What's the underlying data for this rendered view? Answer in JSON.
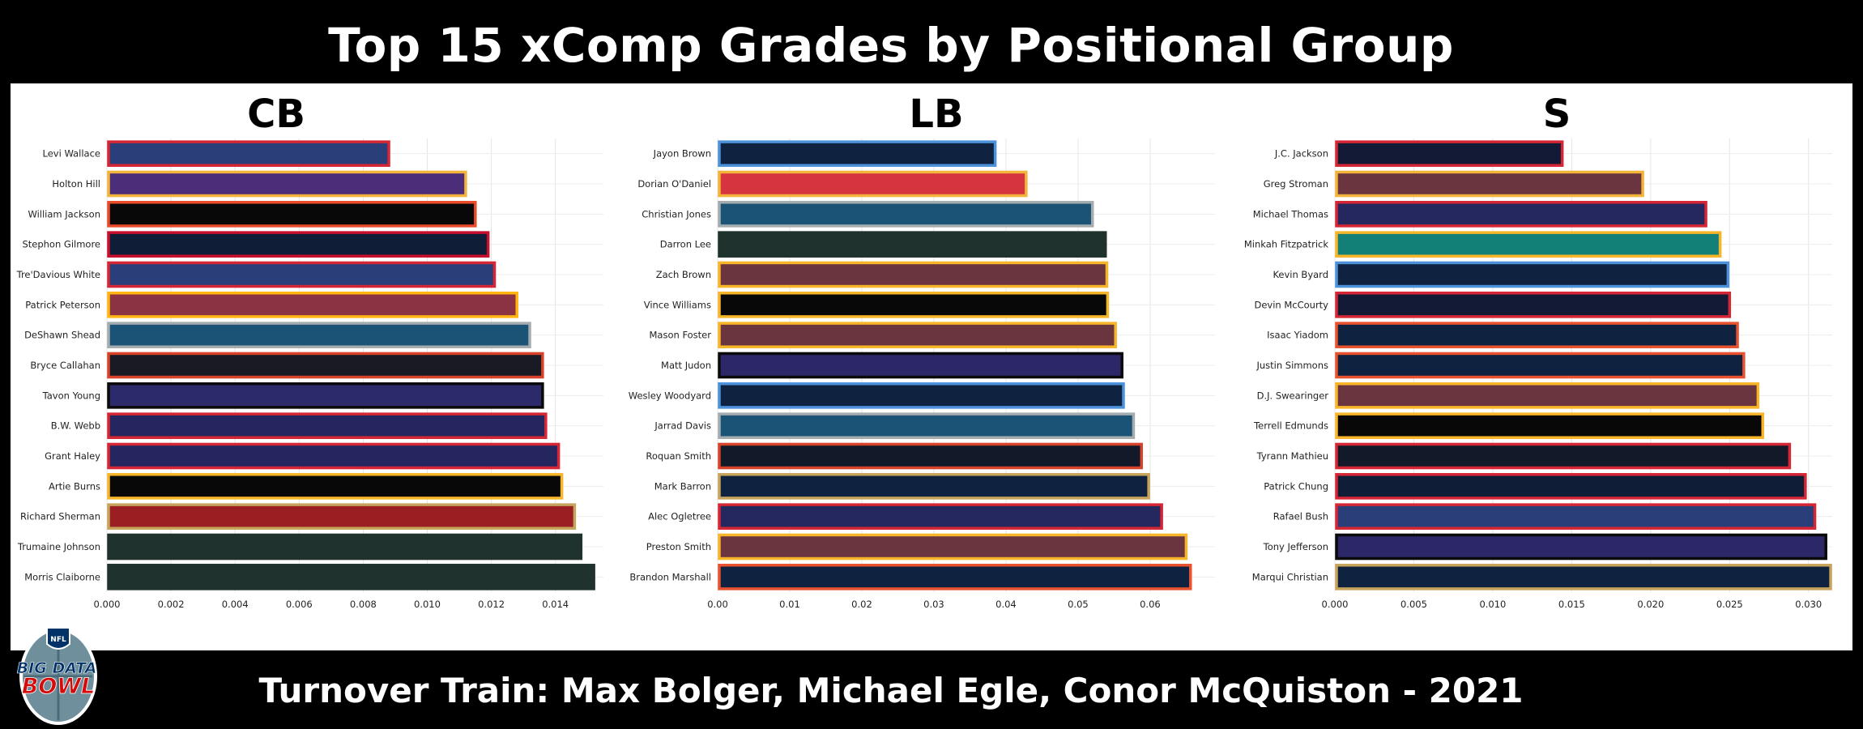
{
  "title": "Top 15 xComp Grades by Positional Group",
  "footer": "Turnover Train: Max Bolger, Michael Egle, Conor McQuiston - 2021",
  "logo": {
    "icon": "nfl-big-data-bowl-logo",
    "text_line1": "BIG DATA",
    "text_line2": "BOWL",
    "shield_text": "NFL"
  },
  "chart_data": [
    {
      "type": "bar",
      "orientation": "horizontal",
      "title": "CB",
      "xlim": [
        0,
        0.0155
      ],
      "xticks": [
        "0.000",
        "0.002",
        "0.004",
        "0.006",
        "0.008",
        "0.010",
        "0.012",
        "0.014"
      ],
      "xtick_values": [
        0,
        0.002,
        0.004,
        0.006,
        0.008,
        0.01,
        0.012,
        0.014
      ],
      "grid": true,
      "categories": [
        "Levi Wallace",
        "Holton Hill",
        "William Jackson",
        "Stephon Gilmore",
        "Tre'Davious White",
        "Patrick Peterson",
        "DeShawn Shead",
        "Bryce Callahan",
        "Tavon Young",
        "B.W. Webb",
        "Grant Haley",
        "Artie Burns",
        "Richard Sherman",
        "Trumaine Johnson",
        "Morris Claiborne"
      ],
      "values": [
        0.0088,
        0.0112,
        0.0115,
        0.0119,
        0.0121,
        0.0128,
        0.0132,
        0.0136,
        0.0136,
        0.0137,
        0.0141,
        0.0142,
        0.0146,
        0.0148,
        0.0152
      ],
      "fill_colors": [
        "#2a3f7a",
        "#4b2d7a",
        "#080808",
        "#0f1e36",
        "#2a3f7a",
        "#8b3243",
        "#1b5377",
        "#1a1a24",
        "#2d2a6b",
        "#252660",
        "#252660",
        "#080808",
        "#9a1e22",
        "#20322d",
        "#20322d"
      ],
      "edge_colors": [
        "#d52635",
        "#f2b53a",
        "#e94b2a",
        "#c8102e",
        "#d52635",
        "#ffb612",
        "#a5acaf",
        "#d8422b",
        "#0a0a0a",
        "#d52635",
        "#d52635",
        "#f7b529",
        "#c7a45b",
        "#20322d",
        "#20322d"
      ]
    },
    {
      "type": "bar",
      "orientation": "horizontal",
      "title": "LB",
      "xlim": [
        0,
        0.069
      ],
      "xticks": [
        "0.00",
        "0.01",
        "0.02",
        "0.03",
        "0.04",
        "0.05",
        "0.06"
      ],
      "xtick_values": [
        0,
        0.01,
        0.02,
        0.03,
        0.04,
        0.05,
        0.06
      ],
      "grid": true,
      "categories": [
        "Jayon Brown",
        "Dorian O'Daniel",
        "Christian Jones",
        "Darron Lee",
        "Zach Brown",
        "Vince Williams",
        "Mason Foster",
        "Matt Judon",
        "Wesley Woodyard",
        "Jarrad Davis",
        "Roquan Smith",
        "Mark Barron",
        "Alec Ogletree",
        "Preston Smith",
        "Brandon Marshall"
      ],
      "values": [
        0.0385,
        0.0428,
        0.052,
        0.0538,
        0.054,
        0.0541,
        0.0552,
        0.0561,
        0.0563,
        0.0577,
        0.0588,
        0.0598,
        0.0616,
        0.065,
        0.0656
      ],
      "fill_colors": [
        "#0f2340",
        "#d6353f",
        "#1b5377",
        "#20322d",
        "#6b3540",
        "#080808",
        "#6b3540",
        "#2c2766",
        "#0f2340",
        "#1b5377",
        "#121a2a",
        "#0f2340",
        "#25285e",
        "#6b3540",
        "#0f2340"
      ],
      "edge_colors": [
        "#4b92db",
        "#f2b53a",
        "#a5acaf",
        "#20322d",
        "#f7b529",
        "#f7b529",
        "#f7b529",
        "#0a0a0a",
        "#4b92db",
        "#a5acaf",
        "#d8422b",
        "#c7a45b",
        "#d52635",
        "#f7b529",
        "#e9522e"
      ]
    },
    {
      "type": "bar",
      "orientation": "horizontal",
      "title": "S",
      "xlim": [
        0,
        0.0315
      ],
      "xticks": [
        "0.000",
        "0.005",
        "0.010",
        "0.015",
        "0.020",
        "0.025",
        "0.030"
      ],
      "xtick_values": [
        0,
        0.005,
        0.01,
        0.015,
        0.02,
        0.025,
        0.03
      ],
      "grid": true,
      "categories": [
        "J.C. Jackson",
        "Greg Stroman",
        "Michael Thomas",
        "Minkah Fitzpatrick",
        "Kevin Byard",
        "Devin McCourty",
        "Isaac Yiadom",
        "Justin Simmons",
        "D.J. Swearinger",
        "Terrell Edmunds",
        "Tyrann Mathieu",
        "Patrick Chung",
        "Rafael Bush",
        "Tony Jefferson",
        "Marqui Christian"
      ],
      "values": [
        0.0144,
        0.0195,
        0.0235,
        0.0244,
        0.0249,
        0.025,
        0.0255,
        0.0259,
        0.0268,
        0.0271,
        0.0288,
        0.0298,
        0.0304,
        0.0311,
        0.0314
      ],
      "fill_colors": [
        "#121a36",
        "#6b3540",
        "#25285e",
        "#138078",
        "#0f2340",
        "#121a36",
        "#0f2340",
        "#0f2340",
        "#6b3540",
        "#080808",
        "#121a2a",
        "#0f1e36",
        "#2a3f7a",
        "#2c2766",
        "#0f2340"
      ],
      "edge_colors": [
        "#d52635",
        "#f2b53a",
        "#d52635",
        "#f7b529",
        "#4b92db",
        "#d52635",
        "#e9522e",
        "#e9522e",
        "#f7b529",
        "#f7b529",
        "#d52635",
        "#d52635",
        "#d52635",
        "#0a0a0a",
        "#c7a45b"
      ]
    }
  ]
}
